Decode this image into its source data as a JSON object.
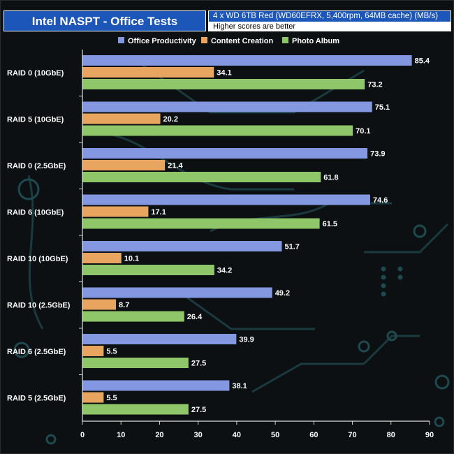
{
  "header": {
    "title": "Intel NASPT - Office Tests",
    "subtitle": "4 x WD 6TB Red (WD60EFRX, 5,400rpm, 64MB cache) (MB/s)",
    "note": "Higher scores are better"
  },
  "chart_data": {
    "type": "bar",
    "orientation": "horizontal",
    "title": "Intel NASPT - Office Tests",
    "xlabel": "",
    "ylabel": "",
    "xlim": [
      0,
      90
    ],
    "ticks": [
      "0",
      "10",
      "20",
      "30",
      "40",
      "50",
      "60",
      "70",
      "80",
      "90"
    ],
    "legend_position": "top",
    "categories": [
      "RAID 0 (10GbE)",
      "RAID 5 (10GbE)",
      "RAID 0 (2.5GbE)",
      "RAID 6 (10GbE)",
      "RAID 10 (10GbE)",
      "RAID 10 (2.5GbE)",
      "RAID 6 (2.5GbE)",
      "RAID 5 (2.5GbE)"
    ],
    "series": [
      {
        "name": "Office Productivity",
        "color": "#8398e0",
        "values": [
          85.4,
          75.1,
          73.9,
          74.6,
          51.7,
          49.2,
          39.9,
          38.1
        ]
      },
      {
        "name": "Content Creation",
        "color": "#e8a55f",
        "values": [
          34.1,
          20.2,
          21.4,
          17.1,
          10.1,
          8.7,
          5.5,
          5.5
        ]
      },
      {
        "name": "Photo Album",
        "color": "#8fc66a",
        "values": [
          73.2,
          70.1,
          61.8,
          61.5,
          34.2,
          26.4,
          27.5,
          27.5
        ]
      }
    ]
  }
}
